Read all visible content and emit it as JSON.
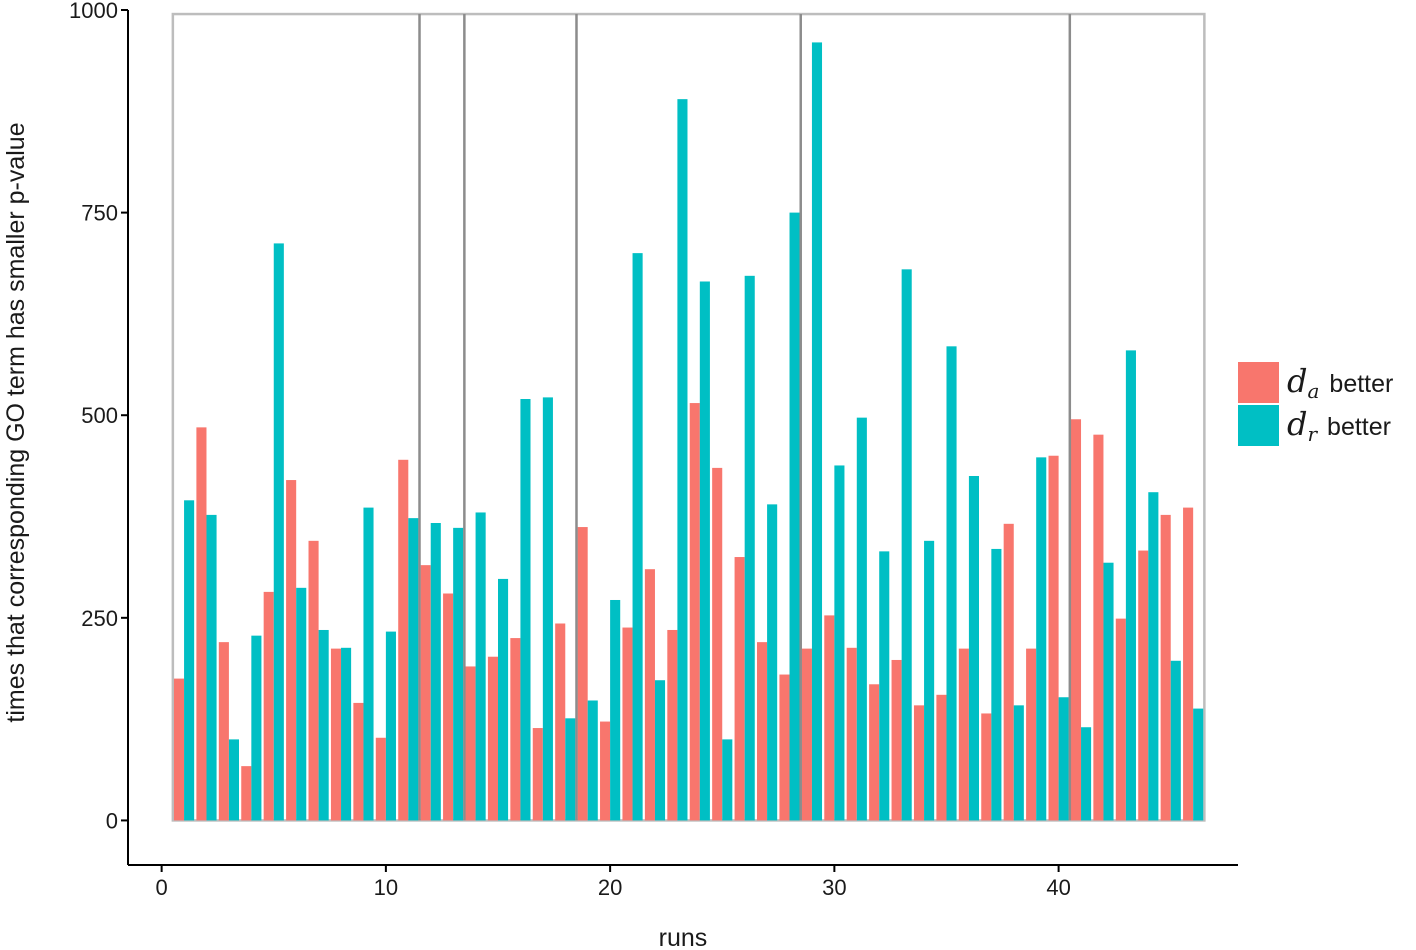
{
  "chart_data": {
    "type": "bar",
    "xlabel": "runs",
    "ylabel": "times that corresponding GO term has smaller p-value",
    "xlim": [
      -1.5,
      48
    ],
    "ylim": [
      -55,
      1000
    ],
    "xticks": [
      0,
      10,
      20,
      30,
      40
    ],
    "yticks": [
      0,
      250,
      500,
      750,
      1000
    ],
    "legend_position": "right",
    "grid": false,
    "frame_box": {
      "x": [
        0.5,
        46.5
      ],
      "y": [
        0,
        995
      ]
    },
    "vertical_lines": [
      11.5,
      13.5,
      18.5,
      28.5,
      40.5
    ],
    "x": [
      1,
      2,
      3,
      4,
      5,
      6,
      7,
      8,
      9,
      10,
      11,
      12,
      13,
      14,
      15,
      16,
      17,
      18,
      19,
      20,
      21,
      22,
      23,
      24,
      25,
      26,
      27,
      28,
      29,
      30,
      31,
      32,
      33,
      34,
      35,
      36,
      37,
      38,
      39,
      40,
      41,
      42,
      43,
      44,
      45,
      46
    ],
    "series": [
      {
        "name": "d_a better",
        "symbol": "d",
        "subscript": "a",
        "suffix": "better",
        "color": "#F8766D",
        "values": [
          175,
          485,
          220,
          67,
          282,
          420,
          345,
          212,
          145,
          102,
          445,
          315,
          280,
          190,
          202,
          225,
          114,
          243,
          362,
          122,
          238,
          310,
          235,
          515,
          435,
          325,
          220,
          180,
          212,
          253,
          213,
          168,
          198,
          142,
          155,
          212,
          132,
          366,
          212,
          450,
          495,
          476,
          249,
          333,
          377,
          386
        ]
      },
      {
        "name": "d_r better",
        "symbol": "d",
        "subscript": "r",
        "suffix": "better",
        "color": "#00BFC4",
        "values": [
          395,
          377,
          100,
          228,
          712,
          287,
          235,
          213,
          386,
          233,
          373,
          367,
          361,
          380,
          298,
          520,
          522,
          126,
          148,
          272,
          700,
          173,
          890,
          665,
          100,
          672,
          390,
          750,
          960,
          438,
          497,
          332,
          680,
          345,
          585,
          425,
          335,
          142,
          448,
          152,
          115,
          318,
          580,
          405,
          197,
          138
        ]
      }
    ]
  }
}
